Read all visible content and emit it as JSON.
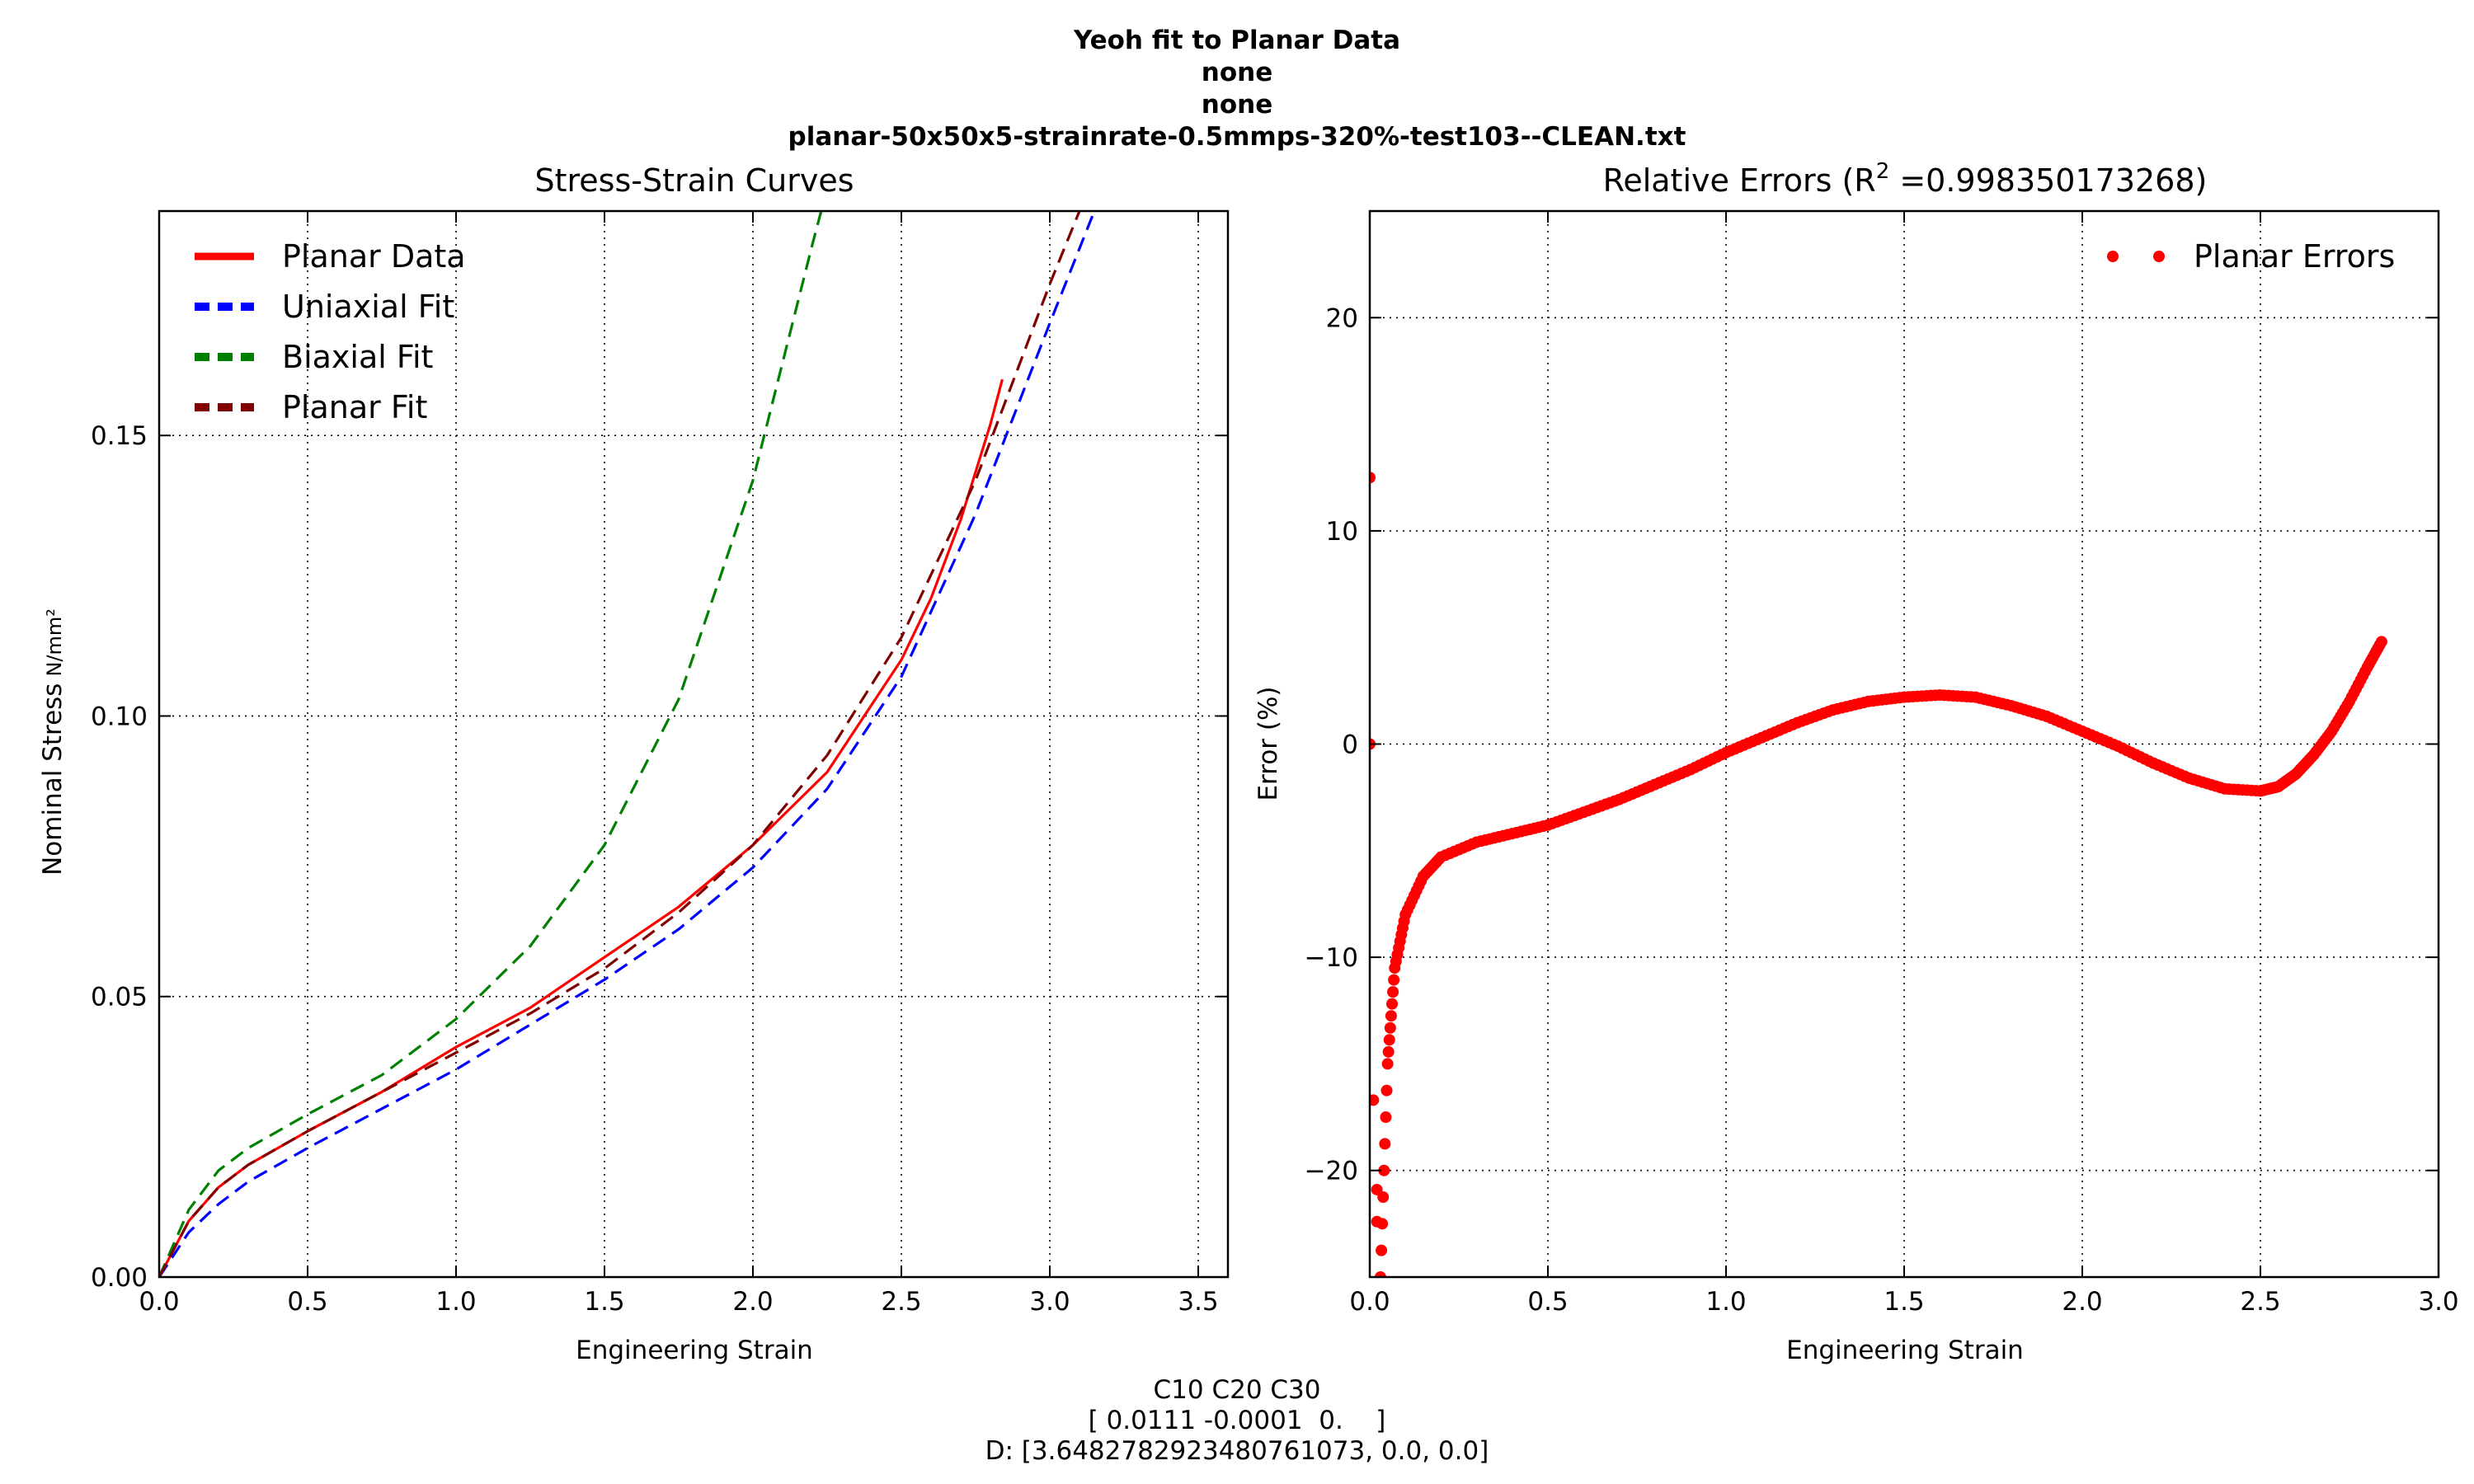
{
  "figure": {
    "suptitle_lines": [
      "Yeoh fit to Planar Data",
      "none",
      "none",
      "planar-50x50x5-strainrate-0.5mmps-320%-test103--CLEAN.txt"
    ],
    "footer_lines": [
      "C10 C20 C30",
      "[ 0.0111 -0.0001  0.    ]",
      "D: [3.6482782923480761073, 0.0, 0.0]"
    ]
  },
  "chart_data": [
    {
      "type": "line",
      "title": "Stress-Strain Curves",
      "xlabel": "Engineering Strain",
      "ylabel": "Nominal Stress",
      "ylabel_unit": "N/mm²",
      "xlim": [
        0,
        3.6
      ],
      "ylim": [
        0,
        0.19
      ],
      "xticks": [
        "0.0",
        "0.5",
        "1.0",
        "1.5",
        "2.0",
        "2.5",
        "3.0",
        "3.5"
      ],
      "yticks": [
        "0.00",
        "0.05",
        "0.10",
        "0.15"
      ],
      "grid": true,
      "legend_position": "top-left",
      "series": [
        {
          "name": "Planar Data",
          "color": "#ff0000",
          "style": "solid",
          "x": [
            0,
            0.1,
            0.2,
            0.3,
            0.5,
            0.75,
            1.0,
            1.25,
            1.5,
            1.75,
            2.0,
            2.25,
            2.5,
            2.6,
            2.7,
            2.8,
            2.84
          ],
          "y": [
            0,
            0.01,
            0.016,
            0.02,
            0.026,
            0.033,
            0.041,
            0.048,
            0.057,
            0.066,
            0.077,
            0.09,
            0.11,
            0.121,
            0.135,
            0.152,
            0.16
          ]
        },
        {
          "name": "Uniaxial Fit",
          "color": "#0000ff",
          "style": "dashed",
          "x": [
            0,
            0.1,
            0.2,
            0.3,
            0.5,
            0.75,
            1.0,
            1.25,
            1.5,
            1.75,
            2.0,
            2.25,
            2.5,
            2.75,
            3.0,
            3.15
          ],
          "y": [
            0,
            0.008,
            0.013,
            0.017,
            0.023,
            0.03,
            0.037,
            0.045,
            0.053,
            0.062,
            0.073,
            0.087,
            0.107,
            0.136,
            0.17,
            0.19
          ]
        },
        {
          "name": "Biaxial Fit",
          "color": "#008000",
          "style": "dashed",
          "x": [
            0,
            0.1,
            0.2,
            0.3,
            0.5,
            0.75,
            1.0,
            1.25,
            1.5,
            1.75,
            2.0,
            2.1,
            2.2,
            2.23
          ],
          "y": [
            0,
            0.012,
            0.019,
            0.023,
            0.029,
            0.036,
            0.046,
            0.059,
            0.077,
            0.103,
            0.142,
            0.163,
            0.184,
            0.19
          ]
        },
        {
          "name": "Planar Fit",
          "color": "#800000",
          "style": "dashed",
          "x": [
            0,
            0.1,
            0.2,
            0.3,
            0.5,
            0.75,
            1.0,
            1.25,
            1.5,
            1.75,
            2.0,
            2.25,
            2.5,
            2.75,
            3.0,
            3.1
          ],
          "y": [
            0,
            0.01,
            0.016,
            0.02,
            0.026,
            0.033,
            0.04,
            0.047,
            0.055,
            0.065,
            0.077,
            0.093,
            0.114,
            0.142,
            0.177,
            0.19
          ]
        }
      ]
    },
    {
      "type": "scatter",
      "title": "Relative Errors (R² =0.998350173268)",
      "title_prefix": "Relative Errors (R",
      "title_superscript": "2",
      "title_suffix": " =0.998350173268)",
      "xlabel": "Engineering Strain",
      "ylabel": "Error (%)",
      "xlim": [
        0,
        3.0
      ],
      "ylim": [
        -25,
        25
      ],
      "xticks": [
        "0.0",
        "0.5",
        "1.0",
        "1.5",
        "2.0",
        "2.5",
        "3.0"
      ],
      "yticks": [
        "−20",
        "−10",
        "0",
        "10",
        "20"
      ],
      "grid": true,
      "legend_position": "top-right",
      "series": [
        {
          "name": "Planar Errors",
          "color": "#ff0000",
          "marker": "circle",
          "x": [
            0,
            0,
            0.01,
            0.02,
            0.02,
            0.03,
            0.05,
            0.07,
            0.1,
            0.15,
            0.2,
            0.3,
            0.4,
            0.5,
            0.6,
            0.7,
            0.8,
            0.9,
            1.0,
            1.1,
            1.2,
            1.3,
            1.4,
            1.5,
            1.6,
            1.7,
            1.8,
            1.9,
            2.0,
            2.1,
            2.2,
            2.3,
            2.4,
            2.5,
            2.55,
            2.6,
            2.65,
            2.7,
            2.75,
            2.8,
            2.84
          ],
          "y": [
            12.5,
            0,
            -16.7,
            -20.9,
            -22.4,
            -25,
            -15,
            -10.5,
            -8,
            -6.2,
            -5.3,
            -4.6,
            -4.2,
            -3.8,
            -3.2,
            -2.6,
            -1.9,
            -1.2,
            -0.4,
            0.3,
            1.0,
            1.6,
            2.0,
            2.2,
            2.3,
            2.2,
            1.8,
            1.3,
            0.6,
            -0.1,
            -0.9,
            -1.6,
            -2.1,
            -2.2,
            -2.0,
            -1.4,
            -0.5,
            0.6,
            2.0,
            3.6,
            4.8
          ]
        }
      ]
    }
  ]
}
